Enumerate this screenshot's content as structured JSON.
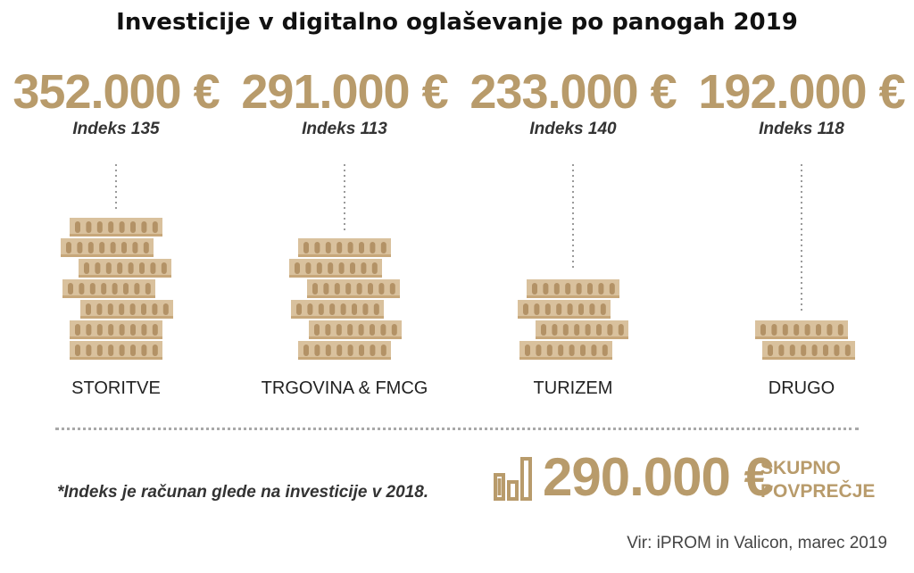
{
  "title": "Investicije v digitalno oglaševanje po panogah 2019",
  "chart_data": {
    "type": "bar",
    "title": "Investicije v digitalno oglaševanje po panogah 2019",
    "categories": [
      "STORITVE",
      "TRGOVINA & FMCG",
      "TURIZEM",
      "DRUGO"
    ],
    "values": [
      352000,
      291000,
      233000,
      192000
    ],
    "value_labels": [
      "352.000 €",
      "291.000 €",
      "233.000 €",
      "192.000 €"
    ],
    "index_labels": [
      "Indeks 135",
      "Indeks 113",
      "Indeks 140",
      "Indeks 118"
    ],
    "index_values": [
      135,
      113,
      140,
      118
    ],
    "unit": "€",
    "coin_stacks": [
      7,
      6,
      4,
      2
    ],
    "coin_offsets": [
      0,
      -10,
      10,
      -8,
      12,
      0,
      0
    ],
    "colors": {
      "accent": "#b89b6b",
      "coin_body": "#d9c19d",
      "coin_mark": "#b39266",
      "coin_rim": "#c7a77a"
    }
  },
  "footnote": "*Indeks je računan glede na investicije v 2018.",
  "average": {
    "value": 290000,
    "amount_label": "290.000 €",
    "label_line1": "SKUPNO",
    "label_line2": "POVPREČJE",
    "icon": "bar-chart-icon"
  },
  "source": "Vir: iPROM in Valicon, marec 2019"
}
